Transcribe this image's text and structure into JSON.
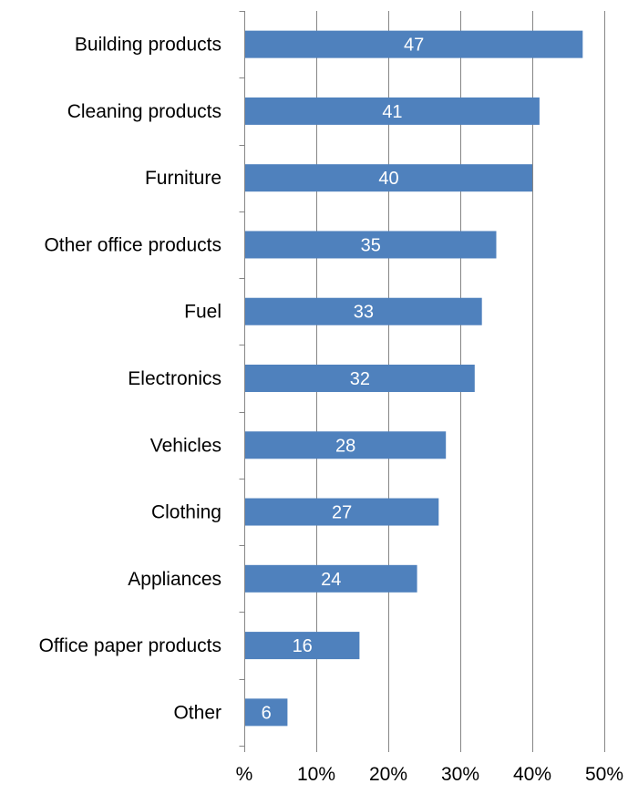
{
  "chart_data": {
    "type": "bar",
    "orientation": "horizontal",
    "categories": [
      "Building products",
      "Cleaning products",
      "Furniture",
      "Other office products",
      "Fuel",
      "Electronics",
      "Vehicles",
      "Clothing",
      "Appliances",
      "Office paper products",
      "Other"
    ],
    "values": [
      47,
      41,
      40,
      35,
      33,
      32,
      28,
      27,
      24,
      16,
      6
    ],
    "data_labels": [
      "47",
      "41",
      "40",
      "35",
      "33",
      "32",
      "28",
      "27",
      "24",
      "16",
      "6"
    ],
    "x_ticks": [
      0,
      10,
      20,
      30,
      40,
      50
    ],
    "x_tick_labels": [
      "%",
      "10%",
      "20%",
      "30%",
      "40%",
      "50%"
    ],
    "xlim": [
      0,
      50
    ],
    "grid": true,
    "legend": "none",
    "bar_color": "#4F81BD"
  }
}
